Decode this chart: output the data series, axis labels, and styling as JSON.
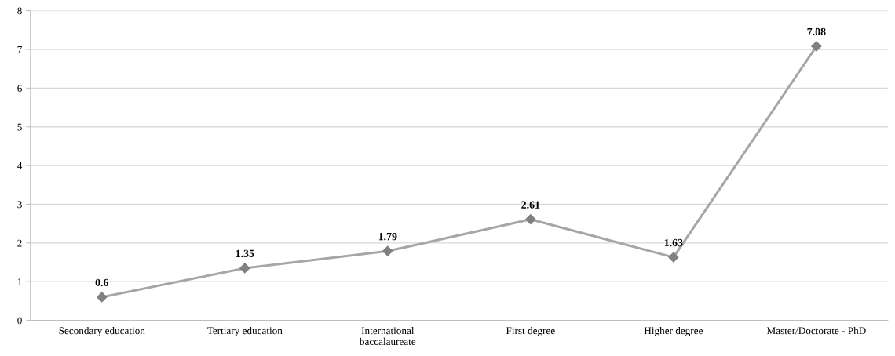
{
  "chart_data": {
    "type": "line",
    "categories": [
      "Secondary education",
      "Tertiary education",
      "International\nbaccalaureate",
      "First degree",
      "Higher degree",
      "Master/Doctorate - PhD"
    ],
    "values": [
      0.6,
      1.35,
      1.79,
      2.61,
      1.63,
      7.08
    ],
    "color": "#a6a6a6",
    "marker": "diamond",
    "line_style": "solid",
    "data_labels": true,
    "ylim": [
      0,
      8
    ],
    "yticks": [
      0,
      1,
      2,
      3,
      4,
      5,
      6,
      7,
      8
    ],
    "grid": "y",
    "legend": false
  }
}
